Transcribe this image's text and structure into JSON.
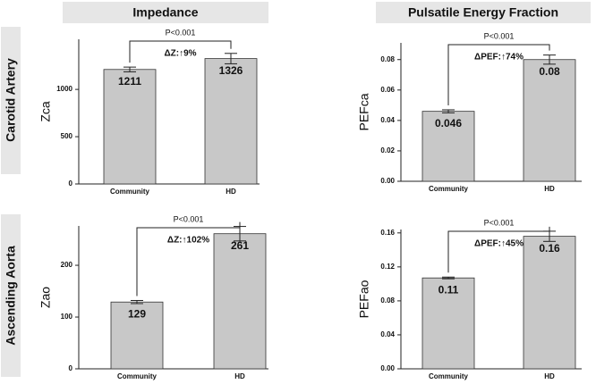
{
  "column_headers": [
    "Impedance",
    "Pulsatile Energy Fraction"
  ],
  "row_labels": [
    "Carotid Artery",
    "Ascending Aorta"
  ],
  "chart_data": [
    {
      "type": "bar",
      "ylabel": "Zca",
      "categories": [
        "Community",
        "HD"
      ],
      "values": [
        1211,
        1326
      ],
      "errors": [
        25,
        55
      ],
      "color": "#c8c8c8",
      "ylim": [
        0,
        1530
      ],
      "yticks": [
        0,
        500,
        1000
      ],
      "p_value": "P<0.001",
      "delta": "ΔZ:↑9%"
    },
    {
      "type": "bar",
      "ylabel": "PEFca",
      "categories": [
        "Community",
        "HD"
      ],
      "values": [
        0.046,
        0.08
      ],
      "errors": [
        0.001,
        0.003
      ],
      "color": "#c8c8c8",
      "ylim": [
        0,
        0.091
      ],
      "yticks": [
        {
          "value": 0,
          "label": "0.00"
        },
        0.02,
        0.04,
        0.06,
        0.08
      ],
      "p_value": "P<0.001",
      "delta": "ΔPEF:↑74%"
    },
    {
      "type": "bar",
      "ylabel": "Zao",
      "categories": [
        "Community",
        "HD"
      ],
      "values": [
        129,
        261
      ],
      "errors": [
        3,
        14
      ],
      "color": "#c8c8c8",
      "ylim": [
        0,
        276
      ],
      "yticks": [
        0,
        100,
        200
      ],
      "p_value": "P<0.001",
      "delta": "ΔZ:↑102%"
    },
    {
      "type": "bar",
      "ylabel": "PEFao",
      "categories": [
        "Community",
        "HD"
      ],
      "values": [
        0.107,
        0.156
      ],
      "value_labels": [
        "0.11",
        "0.16"
      ],
      "errors": [
        0.001,
        0.006
      ],
      "color": "#c8c8c8",
      "ylim": [
        0,
        0.164
      ],
      "yticks": [
        {
          "value": 0,
          "label": "0.00"
        },
        0.04,
        0.08,
        0.12,
        0.16
      ],
      "p_value": "P<0.001",
      "delta": "ΔPEF:↑45%"
    }
  ]
}
